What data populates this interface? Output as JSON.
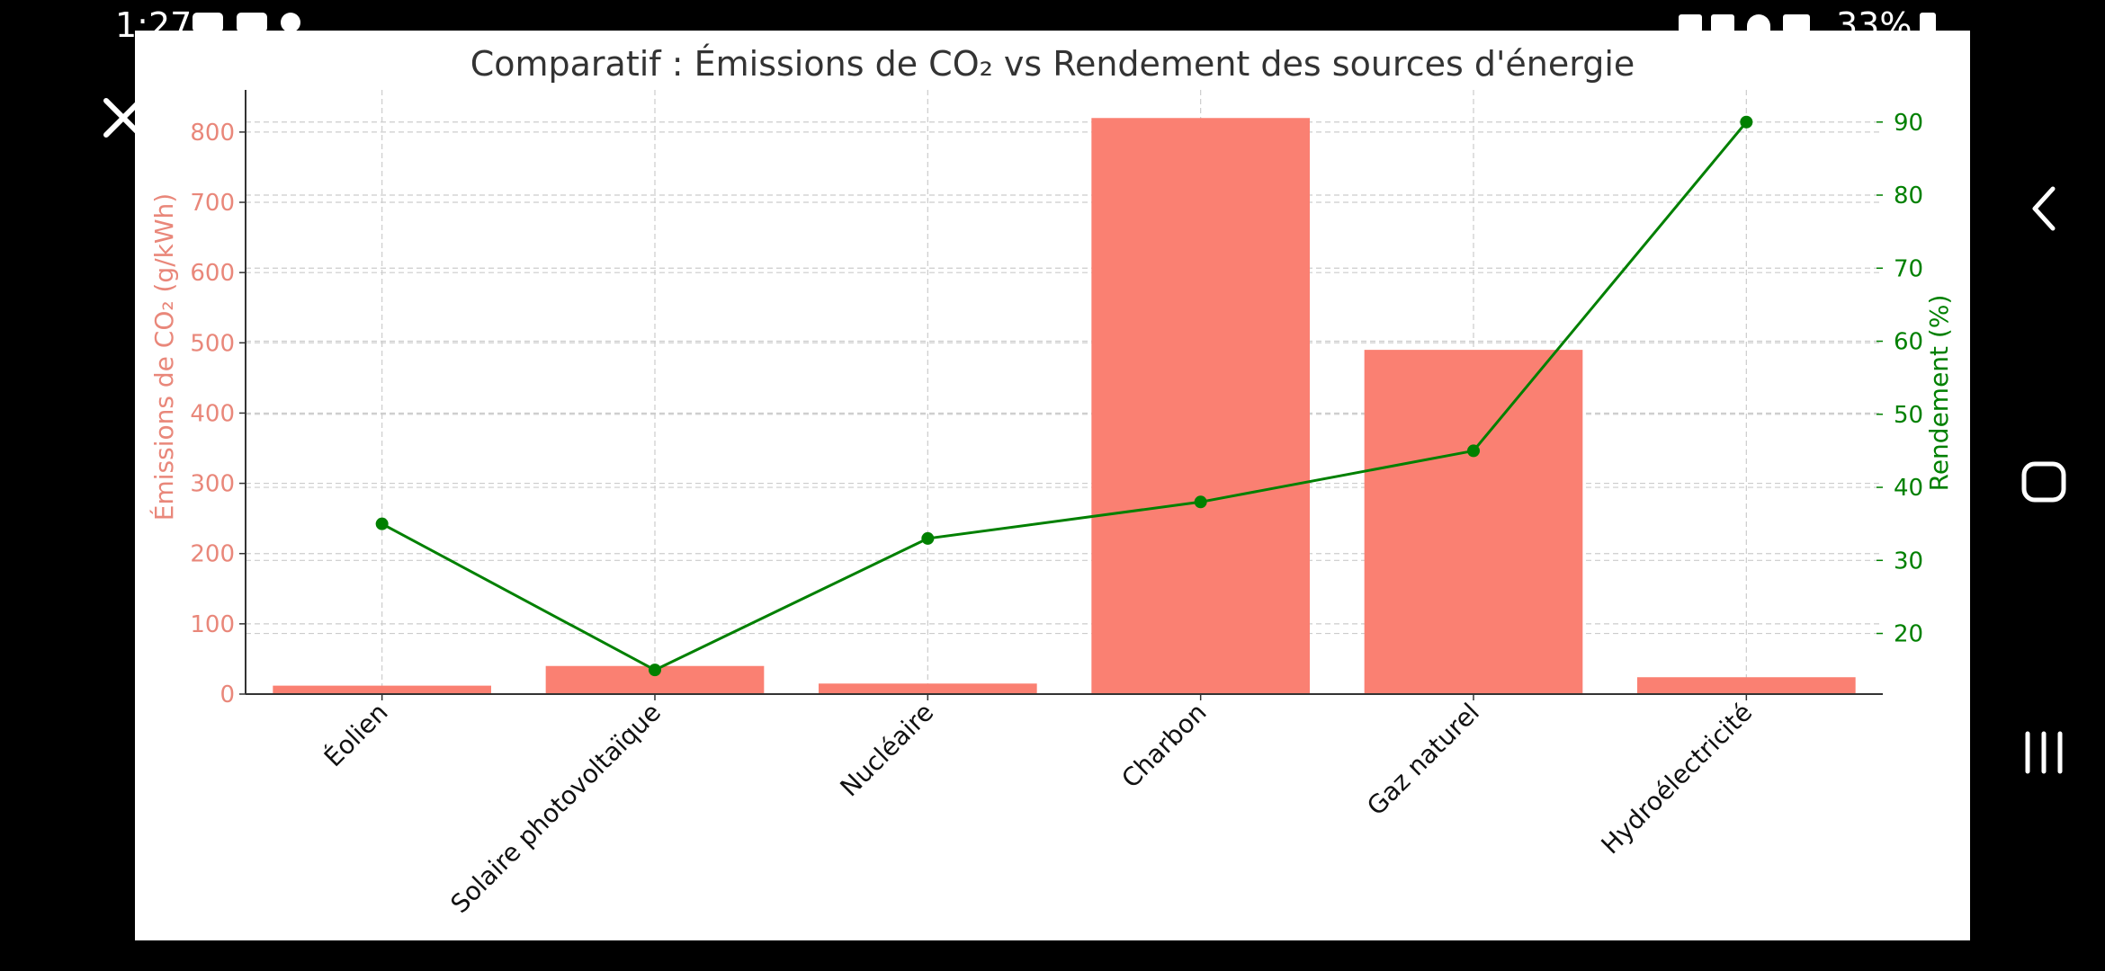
{
  "status_bar": {
    "time": "1:27",
    "battery_text": "33%",
    "left_icons": [
      "youtube-icon",
      "gmail-icon",
      "notification-icon"
    ],
    "right_icons": [
      "battery-saver-icon",
      "mute-icon",
      "wifi-icon",
      "signal-icon",
      "battery-icon"
    ]
  },
  "viewer": {
    "close_icon": "close-icon"
  },
  "nav_bar": {
    "back_icon": "back-icon",
    "home_icon": "home-icon",
    "recents_icon": "recents-icon"
  },
  "colors": {
    "bar": "#FA8072",
    "line": "#008000",
    "left_axis_text": "#E9877A",
    "right_axis_text": "#008000",
    "background": "#000000",
    "chart_background": "#FFFFFF"
  },
  "chart_data": {
    "type": "bar",
    "title": "Comparatif : Émissions de CO₂ vs Rendement des sources d'énergie",
    "xlabel": "",
    "categories": [
      "Éolien",
      "Solaire photovoltaïque",
      "Nucléaire",
      "Charbon",
      "Gaz naturel",
      "Hydroélectricité"
    ],
    "series": [
      {
        "name": "Émissions de CO₂ (g/kWh)",
        "type": "bar",
        "axis": "left",
        "values": [
          12,
          40,
          15,
          820,
          490,
          24
        ]
      },
      {
        "name": "Rendement (%)",
        "type": "line",
        "axis": "right",
        "values": [
          35,
          15,
          33,
          38,
          45,
          90
        ]
      }
    ],
    "ylabel_left": "Émissions de CO₂ (g/kWh)",
    "ylabel_right": "Rendement (%)",
    "ylim_left": [
      0,
      860
    ],
    "ylim_right": [
      11.7,
      94.4
    ],
    "yticks_left": [
      0,
      100,
      200,
      300,
      400,
      500,
      600,
      700,
      800
    ],
    "yticks_right": [
      20,
      30,
      40,
      50,
      60,
      70,
      80,
      90
    ],
    "grid": true,
    "legend": "none"
  }
}
